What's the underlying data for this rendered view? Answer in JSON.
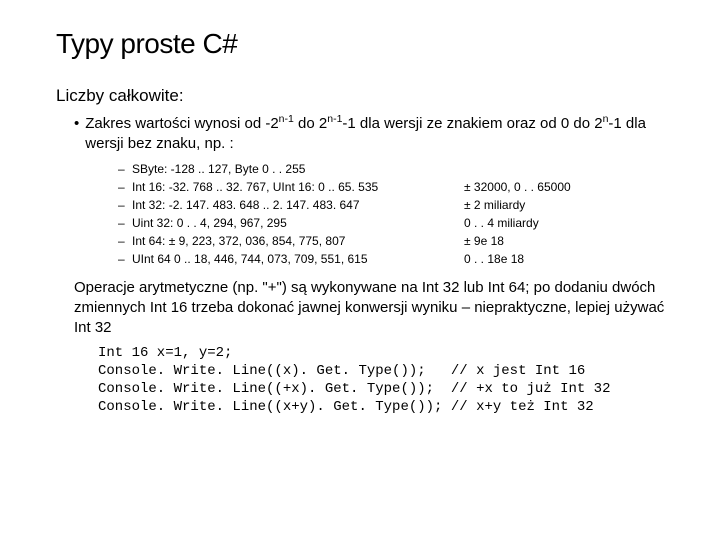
{
  "title": "Typy proste C#",
  "subtitle": "Liczby całkowite:",
  "bullet_prefix": "Zakres wartości wynosi od -2",
  "bullet_mid1": " do 2",
  "bullet_mid2": "-1 dla wersji ze znakiem oraz od 0 do 2",
  "bullet_end": "-1 dla wersji bez znaku, np. :",
  "sup1": "n-1",
  "sup2": "n-1",
  "sup3": "n",
  "types": [
    {
      "left": "SByte: -128 .. 127, Byte 0 . . 255",
      "right": ""
    },
    {
      "left": "Int 16: -32. 768 .. 32. 767, UInt 16: 0 .. 65. 535",
      "right": "± 32000, 0 . . 65000"
    },
    {
      "left": "Int 32: -2. 147. 483. 648 .. 2. 147. 483. 647",
      "right": "± 2 miliardy"
    },
    {
      "left": "Uint 32: 0 . . 4, 294, 967, 295",
      "right": "0 . . 4 miliardy"
    },
    {
      "left": "Int 64: ± 9, 223, 372, 036, 854, 775, 807",
      "right": "± 9e 18"
    },
    {
      "left": "UInt 64 0 .. 18, 446, 744, 073, 709, 551, 615",
      "right": "0 . . 18e 18"
    }
  ],
  "paragraph": "Operacje arytmetyczne (np. \"+\") są wykonywane na Int 32 lub Int 64; po dodaniu dwóch zmiennych Int 16 trzeba dokonać jawnej konwersji wyniku – niepraktyczne, lepiej używać Int 32",
  "code": [
    {
      "c": "Int 16 x=1, y=2;",
      "cm": ""
    },
    {
      "c": "Console. Write. Line((x). Get. Type());   ",
      "cm": "// x jest Int 16"
    },
    {
      "c": "Console. Write. Line((+x). Get. Type());  ",
      "cm": "// +x to już Int 32"
    },
    {
      "c": "Console. Write. Line((x+y). Get. Type()); ",
      "cm": "// x+y też Int 32"
    }
  ]
}
